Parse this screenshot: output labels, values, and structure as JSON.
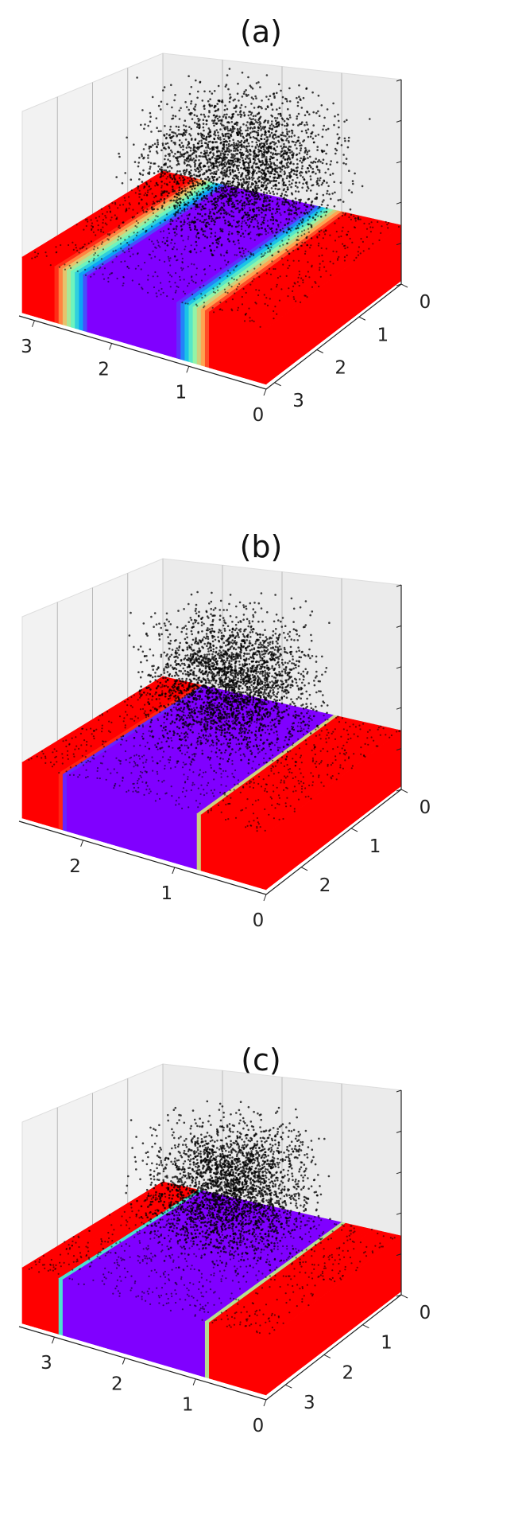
{
  "chart_data": [
    {
      "type": "scatter",
      "title": "(a)",
      "front_axis_ticks": [
        "3",
        "2",
        "1",
        "0"
      ],
      "side_axis_ticks": [
        "0",
        "1",
        "2",
        "3"
      ],
      "front_range": [
        0,
        3.2
      ],
      "side_range": [
        0,
        3.2
      ],
      "colormap": "rainbow",
      "slab_band": {
        "start": 0.95,
        "end": 2.55,
        "edge_width": 0.45
      },
      "point_cloud_color": "#000000",
      "grid": true
    },
    {
      "type": "scatter",
      "title": "(b)",
      "front_axis_ticks": [
        "2",
        "1",
        "0"
      ],
      "side_axis_ticks": [
        "0",
        "1",
        "2"
      ],
      "front_range": [
        0,
        2.7
      ],
      "side_range": [
        0,
        2.7
      ],
      "colormap": "rainbow",
      "slab_band": {
        "start": 0.75,
        "end": 2.25,
        "edge_width": 0.05
      },
      "point_cloud_color": "#000000",
      "grid": true
    },
    {
      "type": "scatter",
      "title": "(c)",
      "front_axis_ticks": [
        "3",
        "2",
        "1",
        "0"
      ],
      "side_axis_ticks": [
        "0",
        "1",
        "2",
        "3"
      ],
      "front_range": [
        0,
        3.5
      ],
      "side_range": [
        0,
        3.5
      ],
      "colormap": "rainbow",
      "slab_band": {
        "start": 0.85,
        "end": 2.95,
        "edge_width": 0.04
      },
      "point_cloud_color": "#000000",
      "grid": true
    }
  ]
}
